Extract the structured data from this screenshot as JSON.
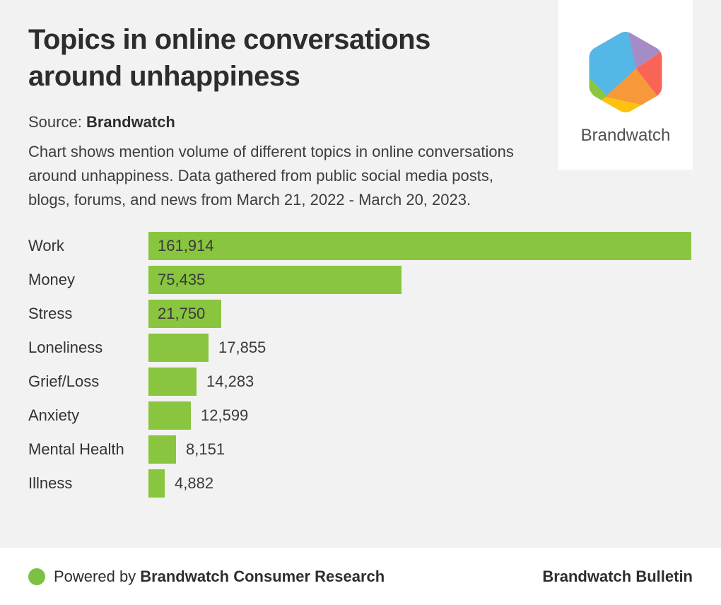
{
  "header": {
    "title": "Topics in online conversations around unhappiness",
    "source_prefix": "Source:",
    "source_name": "Brandwatch",
    "description": "Chart shows mention volume of different topics in online conversations around unhappiness. Data gathered from public social media posts, blogs, forums, and news from March 21, 2022 - March 20, 2023."
  },
  "logo": {
    "wordmark": "Brandwatch",
    "hexagon_colors": {
      "blue": "#55b7e5",
      "purple": "#a58cc6",
      "coral": "#fa6456",
      "orange": "#f7993b",
      "yellow": "#fdc20f",
      "green": "#8cc63e"
    }
  },
  "chart_data": {
    "type": "bar",
    "orientation": "horizontal",
    "title": "Topics in online conversations around unhappiness",
    "xlabel": "",
    "ylabel": "",
    "categories": [
      "Work",
      "Money",
      "Stress",
      "Loneliness",
      "Grief/Loss",
      "Anxiety",
      "Mental Health",
      "Illness"
    ],
    "values": [
      161914,
      75435,
      21750,
      17855,
      14283,
      12599,
      8151,
      4882
    ],
    "value_labels": [
      "161,914",
      "75,435",
      "21,750",
      "17,855",
      "14,283",
      "12,599",
      "8,151",
      "4,882"
    ],
    "bar_color": "#89c53f",
    "xlim": [
      0,
      161914
    ],
    "grid": false,
    "legend": false
  },
  "footer": {
    "powered_prefix": "Powered by",
    "powered_name": "Brandwatch Consumer Research",
    "right_text": "Brandwatch Bulletin",
    "dot_color": "#7cc143"
  }
}
